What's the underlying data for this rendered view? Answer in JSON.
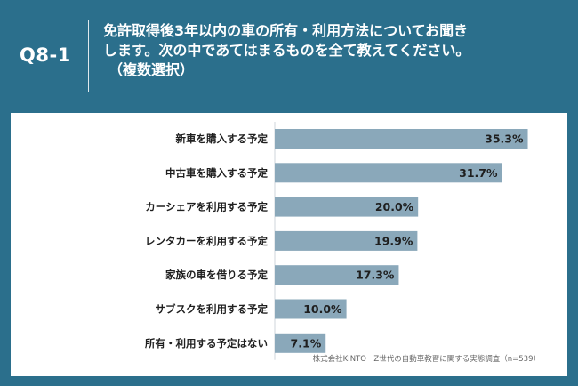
{
  "header": {
    "question_number": "Q8-1",
    "question_line1": "免許取得後3年以内の車の所有・利用方法についてお聞き",
    "question_line2": "します。次の中であてはまるものを全て教えてください。",
    "question_line3": "（複数選択）"
  },
  "chart_data": {
    "type": "bar",
    "orientation": "horizontal",
    "categories": [
      "新車を購入する予定",
      "中古車を購入する予定",
      "カーシェアを利用する予定",
      "レンタカーを利用する予定",
      "家族の車を借りる予定",
      "サブスクを利用する予定",
      "所有・利用する予定はない"
    ],
    "values": [
      35.3,
      31.7,
      20.0,
      19.9,
      17.3,
      10.0,
      7.1
    ],
    "value_labels": [
      "35.3%",
      "31.7%",
      "20.0%",
      "19.9%",
      "17.3%",
      "10.0%",
      "7.1%"
    ],
    "xlim": [
      0,
      40
    ],
    "grid": false,
    "bar_color": "#8aa8ba"
  },
  "footer": {
    "source": "株式会社KINTO　Z世代の自動車教習に関する実態調査（n=539）",
    "logo": "KINTO"
  },
  "colors": {
    "background": "#2b6f8c",
    "panel": "#ffffff",
    "axis": "#cfd6db"
  }
}
